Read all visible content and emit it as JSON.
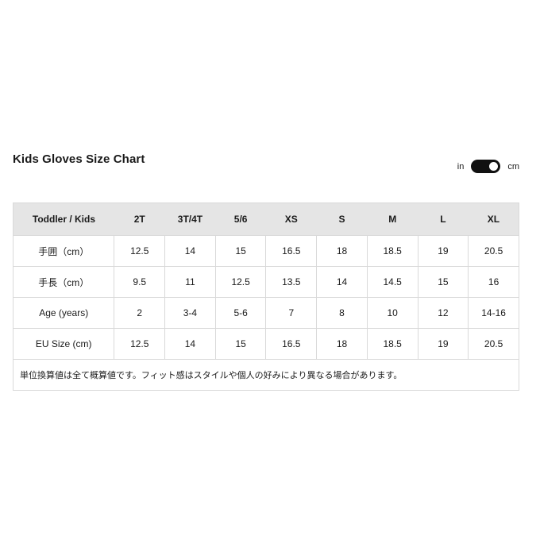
{
  "page": {
    "title": "Kids Gloves Size Chart"
  },
  "unit_toggle": {
    "left_label": "in",
    "right_label": "cm",
    "selected": "cm"
  },
  "chart_data": {
    "type": "table",
    "title": "Kids Gloves Size Chart",
    "columns": [
      "Toddler / Kids",
      "2T",
      "3T/4T",
      "5/6",
      "XS",
      "S",
      "M",
      "L",
      "XL"
    ],
    "rows": [
      {
        "label": "手囲（cm）",
        "values": [
          "12.5",
          "14",
          "15",
          "16.5",
          "18",
          "18.5",
          "19",
          "20.5"
        ]
      },
      {
        "label": "手長（cm）",
        "values": [
          "9.5",
          "11",
          "12.5",
          "13.5",
          "14",
          "14.5",
          "15",
          "16"
        ]
      },
      {
        "label": "Age (years)",
        "values": [
          "2",
          "3-4",
          "5-6",
          "7",
          "8",
          "10",
          "12",
          "14-16"
        ]
      },
      {
        "label": "EU Size (cm)",
        "values": [
          "12.5",
          "14",
          "15",
          "16.5",
          "18",
          "18.5",
          "19",
          "20.5"
        ]
      }
    ],
    "footnote": "単位換算値は全て概算値です。フィット感はスタイルや個人の好みにより異なる場合があります。"
  },
  "colors": {
    "header_bg": "#e5e5e5",
    "border": "#d9d9d9",
    "text": "#1a1a1a",
    "toggle_track": "#111111",
    "toggle_knob": "#ffffff"
  }
}
